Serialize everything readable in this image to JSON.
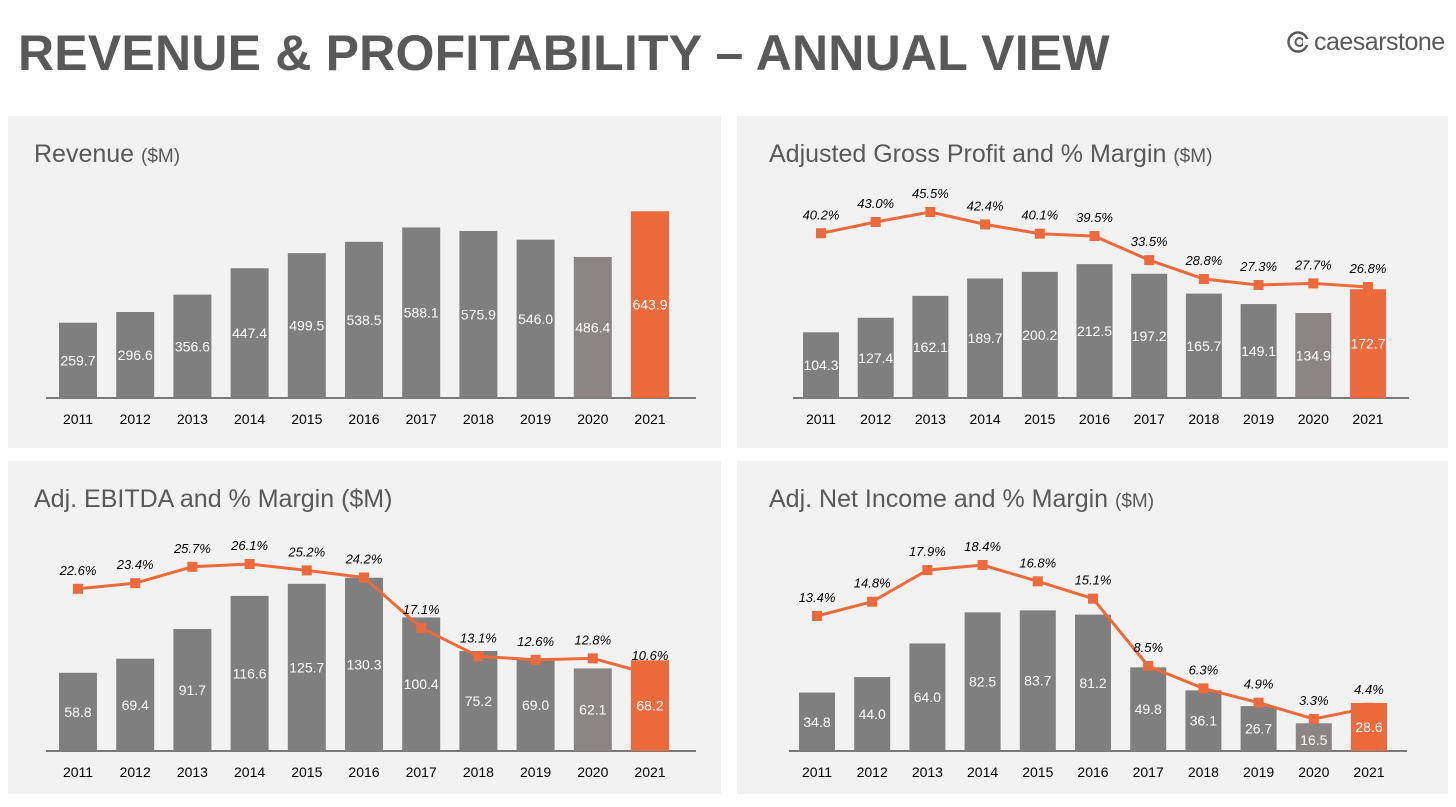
{
  "page": {
    "title": "REVENUE & PROFITABILITY – ANNUAL VIEW",
    "logo_text": "caesarstone"
  },
  "colors": {
    "bar_gray": "#7f7f7f",
    "bar_gray_2020": "#8c8585",
    "highlight": "#ec6a3c",
    "panel_bg": "#f2f2f2",
    "title_gray": "#595959"
  },
  "chart_data": [
    {
      "type": "bar",
      "title": "Revenue",
      "unit": "($M)",
      "categories": [
        "2011",
        "2012",
        "2013",
        "2014",
        "2015",
        "2016",
        "2017",
        "2018",
        "2019",
        "2020",
        "2021"
      ],
      "values": [
        259.7,
        296.6,
        356.6,
        447.4,
        499.5,
        538.5,
        588.1,
        575.9,
        546.0,
        486.4,
        643.9
      ],
      "value_labels": [
        "259.7",
        "296.6",
        "356.6",
        "447.4",
        "499.5",
        "538.5",
        "588.1",
        "575.9",
        "546.0",
        "486.4",
        "643.9"
      ],
      "highlight_category": "2021",
      "grid": false,
      "legend": "none"
    },
    {
      "type": "bar",
      "title": "Adjusted Gross Profit and % Margin",
      "unit": "($M)",
      "categories": [
        "2011",
        "2012",
        "2013",
        "2014",
        "2015",
        "2016",
        "2017",
        "2018",
        "2019",
        "2020",
        "2021"
      ],
      "values": [
        104.3,
        127.4,
        162.1,
        189.7,
        200.2,
        212.5,
        197.2,
        165.7,
        149.1,
        134.9,
        172.7
      ],
      "value_labels": [
        "104.3",
        "127.4",
        "162.1",
        "189.7",
        "200.2",
        "212.5",
        "197.2",
        "165.7",
        "149.1",
        "134.9",
        "172.7"
      ],
      "margin_percent": [
        40.2,
        43.0,
        45.5,
        42.4,
        40.1,
        39.5,
        33.5,
        28.8,
        27.3,
        27.7,
        26.8
      ],
      "margin_labels": [
        "40.2%",
        "43.0%",
        "45.5%",
        "42.4%",
        "40.1%",
        "39.5%",
        "33.5%",
        "28.8%",
        "27.3%",
        "27.7%",
        "26.8%"
      ],
      "highlight_category": "2021",
      "grid": false,
      "legend": "none"
    },
    {
      "type": "bar",
      "title": "Adj. EBITDA and % Margin ($M)",
      "unit": "",
      "categories": [
        "2011",
        "2012",
        "2013",
        "2014",
        "2015",
        "2016",
        "2017",
        "2018",
        "2019",
        "2020",
        "2021"
      ],
      "values": [
        58.8,
        69.4,
        91.7,
        116.6,
        125.7,
        130.3,
        100.4,
        75.2,
        69.0,
        62.1,
        68.2
      ],
      "value_labels": [
        "58.8",
        "69.4",
        "91.7",
        "116.6",
        "125.7",
        "130.3",
        "100.4",
        "75.2",
        "69.0",
        "62.1",
        "68.2"
      ],
      "margin_percent": [
        22.6,
        23.4,
        25.7,
        26.1,
        25.2,
        24.2,
        17.1,
        13.1,
        12.6,
        12.8,
        10.6
      ],
      "margin_labels": [
        "22.6%",
        "23.4%",
        "25.7%",
        "26.1%",
        "25.2%",
        "24.2%",
        "17.1%",
        "13.1%",
        "12.6%",
        "12.8%",
        "10.6%"
      ],
      "highlight_category": "2021",
      "grid": false,
      "legend": "none"
    },
    {
      "type": "bar",
      "title": "Adj. Net Income and % Margin",
      "unit": "($M)",
      "categories": [
        "2011",
        "2012",
        "2013",
        "2014",
        "2015",
        "2016",
        "2017",
        "2018",
        "2019",
        "2020",
        "2021"
      ],
      "values": [
        34.8,
        44.0,
        64.0,
        82.5,
        83.7,
        81.2,
        49.8,
        36.1,
        26.7,
        16.5,
        28.6
      ],
      "value_labels": [
        "34.8",
        "44.0",
        "64.0",
        "82.5",
        "83.7",
        "81.2",
        "49.8",
        "36.1",
        "26.7",
        "16.5",
        "28.6"
      ],
      "margin_percent": [
        13.4,
        14.8,
        17.9,
        18.4,
        16.8,
        15.1,
        8.5,
        6.3,
        4.9,
        3.3,
        4.4
      ],
      "margin_labels": [
        "13.4%",
        "14.8%",
        "17.9%",
        "18.4%",
        "16.8%",
        "15.1%",
        "8.5%",
        "6.3%",
        "4.9%",
        "3.3%",
        "4.4%"
      ],
      "highlight_category": "2021",
      "grid": false,
      "legend": "none"
    }
  ]
}
